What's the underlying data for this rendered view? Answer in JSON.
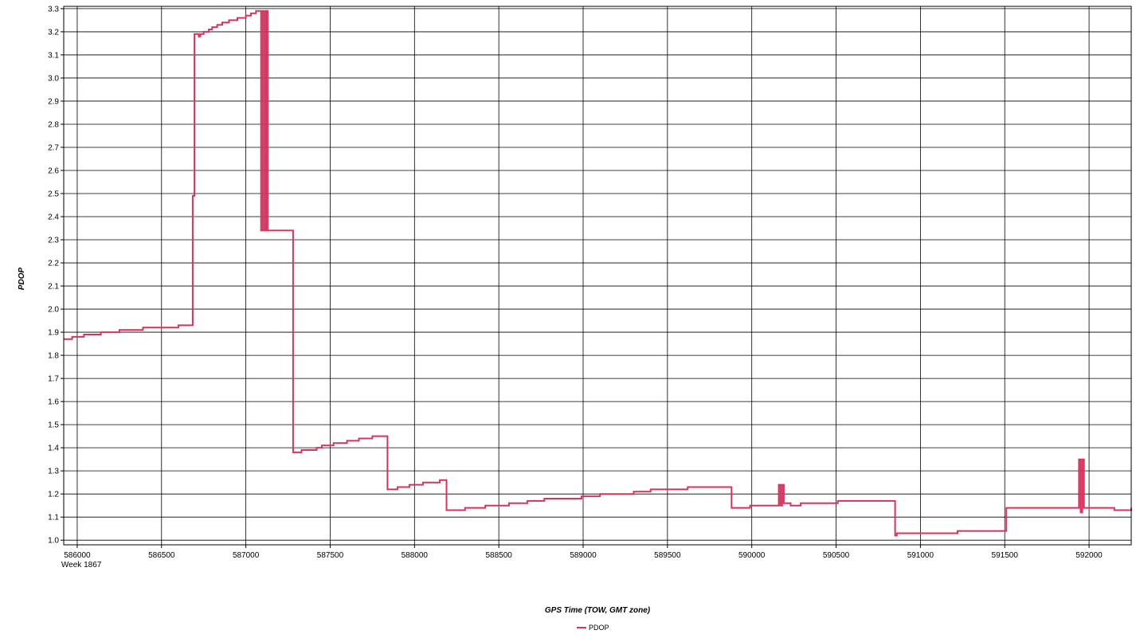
{
  "colors": {
    "series": "#d6335f",
    "grid": "#000000",
    "background": "#ffffff"
  },
  "chart_data": {
    "type": "line",
    "xlabel": "GPS Time (TOW, GMT zone)",
    "ylabel": "PDOP",
    "x_first_tick_sublabel": "Week 1867",
    "xlim": [
      585920,
      592250
    ],
    "ylim": [
      0.98,
      3.31
    ],
    "x_ticks": [
      586000,
      586500,
      587000,
      587500,
      588000,
      588500,
      589000,
      589500,
      590000,
      590500,
      591000,
      591500,
      592000
    ],
    "y_ticks": [
      1.0,
      1.1,
      1.2,
      1.3,
      1.4,
      1.5,
      1.6,
      1.7,
      1.8,
      1.9,
      2.0,
      2.1,
      2.2,
      2.3,
      2.4,
      2.5,
      2.6,
      2.7,
      2.8,
      2.9,
      3.0,
      3.1,
      3.2,
      3.3
    ],
    "y_tick_labels": [
      "1.0",
      "1.1",
      "1.2",
      "1.3",
      "1.4",
      "1.5",
      "1.6",
      "1.7",
      "1.8",
      "1.9",
      "2.0",
      "2.1",
      "2.2",
      "2.3",
      "2.4",
      "2.5",
      "2.6",
      "2.7",
      "2.8",
      "2.9",
      "3.0",
      "3.1",
      "3.2",
      "3.3"
    ],
    "grid": true,
    "legend_position": "bottom-center",
    "series": [
      {
        "name": "PDOP",
        "step": true,
        "points": [
          [
            585920,
            1.87
          ],
          [
            585970,
            1.88
          ],
          [
            586040,
            1.89
          ],
          [
            586140,
            1.9
          ],
          [
            586250,
            1.91
          ],
          [
            586390,
            1.92
          ],
          [
            586600,
            1.93
          ],
          [
            586685,
            2.49
          ],
          [
            586695,
            3.19
          ],
          [
            586720,
            3.18
          ],
          [
            586730,
            3.19
          ],
          [
            586750,
            3.2
          ],
          [
            586780,
            3.21
          ],
          [
            586800,
            3.22
          ],
          [
            586830,
            3.23
          ],
          [
            586860,
            3.24
          ],
          [
            586900,
            3.25
          ],
          [
            586950,
            3.26
          ],
          [
            587000,
            3.27
          ],
          [
            587030,
            3.28
          ],
          [
            587060,
            3.29
          ],
          [
            587090,
            2.34
          ],
          [
            587100,
            3.29
          ],
          [
            587110,
            2.34
          ],
          [
            587120,
            3.29
          ],
          [
            587130,
            2.34
          ],
          [
            587280,
            1.38
          ],
          [
            587330,
            1.39
          ],
          [
            587420,
            1.4
          ],
          [
            587450,
            1.41
          ],
          [
            587520,
            1.42
          ],
          [
            587600,
            1.43
          ],
          [
            587670,
            1.44
          ],
          [
            587750,
            1.45
          ],
          [
            587840,
            1.22
          ],
          [
            587900,
            1.23
          ],
          [
            587970,
            1.24
          ],
          [
            588050,
            1.25
          ],
          [
            588150,
            1.26
          ],
          [
            588190,
            1.13
          ],
          [
            588300,
            1.14
          ],
          [
            588420,
            1.15
          ],
          [
            588560,
            1.16
          ],
          [
            588670,
            1.17
          ],
          [
            588770,
            1.18
          ],
          [
            588990,
            1.19
          ],
          [
            589100,
            1.2
          ],
          [
            589300,
            1.21
          ],
          [
            589400,
            1.22
          ],
          [
            589620,
            1.23
          ],
          [
            589880,
            1.14
          ],
          [
            589990,
            1.15
          ],
          [
            590160,
            1.24
          ],
          [
            590170,
            1.15
          ],
          [
            590180,
            1.24
          ],
          [
            590190,
            1.16
          ],
          [
            590230,
            1.15
          ],
          [
            590290,
            1.16
          ],
          [
            590510,
            1.17
          ],
          [
            590850,
            1.02
          ],
          [
            590860,
            1.03
          ],
          [
            591220,
            1.04
          ],
          [
            591510,
            1.14
          ],
          [
            591940,
            1.35
          ],
          [
            591950,
            1.12
          ],
          [
            591960,
            1.35
          ],
          [
            591970,
            1.14
          ],
          [
            592150,
            1.13
          ],
          [
            592250,
            1.14
          ]
        ]
      }
    ]
  }
}
